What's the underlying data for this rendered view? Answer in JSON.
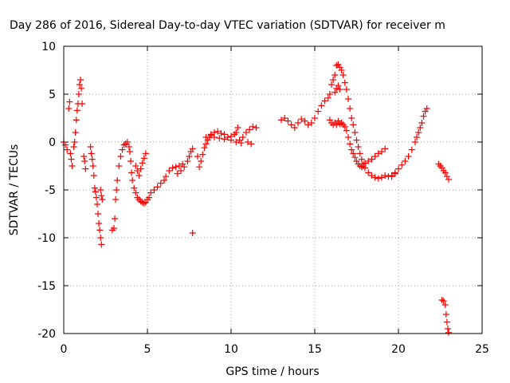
{
  "chart_data": {
    "type": "scatter",
    "title": "Day 286 of 2016, Sidereal Day-to-day VTEC variation (SDTVAR) for receiver m",
    "xlabel": "GPS time / hours",
    "ylabel": "SDTVAR / TECUs",
    "xlim": [
      0,
      25
    ],
    "ylim": [
      -20,
      10
    ],
    "xticks": [
      "0",
      "5",
      "10",
      "15",
      "20",
      "25"
    ],
    "yticks": [
      "10",
      "5",
      "0",
      "-5",
      "-10",
      "-15",
      "-20"
    ],
    "grid": true,
    "marker": "+",
    "color": "#ff0000",
    "series": [
      {
        "values": [
          [
            0.0,
            0.0
          ],
          [
            0.1,
            -0.3
          ],
          [
            0.2,
            -0.8
          ],
          [
            0.3,
            3.5
          ],
          [
            0.35,
            4.2
          ],
          [
            0.4,
            -1.2
          ],
          [
            0.45,
            -1.8
          ],
          [
            0.5,
            -2.5
          ],
          [
            0.6,
            -0.5
          ],
          [
            0.65,
            0.0
          ],
          [
            0.7,
            1.0
          ],
          [
            0.75,
            2.3
          ],
          [
            0.8,
            3.3
          ],
          [
            0.85,
            4.0
          ],
          [
            0.9,
            5.0
          ],
          [
            0.95,
            6.0
          ],
          [
            1.0,
            6.5
          ],
          [
            1.05,
            5.6
          ],
          [
            1.1,
            4.0
          ],
          [
            1.2,
            -1.5
          ],
          [
            1.25,
            -2.0
          ],
          [
            1.3,
            -2.8
          ],
          [
            1.6,
            -0.5
          ],
          [
            1.65,
            -1.2
          ],
          [
            1.7,
            -1.8
          ],
          [
            1.75,
            -2.5
          ],
          [
            1.8,
            -3.5
          ],
          [
            1.85,
            -4.8
          ],
          [
            1.9,
            -5.2
          ],
          [
            1.95,
            -5.8
          ],
          [
            2.0,
            -6.5
          ],
          [
            2.05,
            -7.5
          ],
          [
            2.1,
            -8.5
          ],
          [
            2.15,
            -9.2
          ],
          [
            2.2,
            -10.0
          ],
          [
            2.25,
            -10.7
          ],
          [
            2.2,
            -5.0
          ],
          [
            2.25,
            -5.6
          ],
          [
            2.3,
            -6.0
          ],
          [
            2.9,
            -9.2
          ],
          [
            3.0,
            -9.0
          ],
          [
            3.05,
            -8.0
          ],
          [
            3.1,
            -6.0
          ],
          [
            3.15,
            -5.0
          ],
          [
            3.2,
            -4.0
          ],
          [
            3.3,
            -2.5
          ],
          [
            3.4,
            -1.5
          ],
          [
            3.5,
            -0.8
          ],
          [
            3.6,
            -0.3
          ],
          [
            3.7,
            -0.2
          ],
          [
            3.8,
            0.0
          ],
          [
            3.9,
            -0.5
          ],
          [
            3.95,
            -1.0
          ],
          [
            4.0,
            -2.0
          ],
          [
            4.05,
            -3.2
          ],
          [
            4.1,
            -4.0
          ],
          [
            4.2,
            -4.8
          ],
          [
            4.3,
            -5.3
          ],
          [
            4.4,
            -5.8
          ],
          [
            4.5,
            -6.0
          ],
          [
            4.6,
            -6.2
          ],
          [
            4.7,
            -6.3
          ],
          [
            4.8,
            -6.4
          ],
          [
            4.9,
            -6.3
          ],
          [
            5.0,
            -6.0
          ],
          [
            5.1,
            -5.8
          ],
          [
            4.3,
            -2.5
          ],
          [
            4.4,
            -3.0
          ],
          [
            4.5,
            -3.5
          ],
          [
            4.6,
            -2.8
          ],
          [
            4.7,
            -2.2
          ],
          [
            4.8,
            -1.7
          ],
          [
            4.9,
            -1.2
          ],
          [
            5.2,
            -5.3
          ],
          [
            5.4,
            -5.0
          ],
          [
            5.6,
            -4.7
          ],
          [
            5.8,
            -4.3
          ],
          [
            6.0,
            -4.0
          ],
          [
            6.1,
            -3.6
          ],
          [
            6.3,
            -3.0
          ],
          [
            6.5,
            -2.7
          ],
          [
            6.7,
            -2.6
          ],
          [
            6.9,
            -2.5
          ],
          [
            7.1,
            -2.3
          ],
          [
            6.8,
            -3.3
          ],
          [
            7.0,
            -3.0
          ],
          [
            7.2,
            -2.6
          ],
          [
            7.4,
            -2.0
          ],
          [
            7.5,
            -1.5
          ],
          [
            7.6,
            -1.0
          ],
          [
            7.7,
            -0.7
          ],
          [
            7.7,
            -9.5
          ],
          [
            8.0,
            -1.5
          ],
          [
            8.1,
            -2.6
          ],
          [
            8.2,
            -2.0
          ],
          [
            8.3,
            -1.3
          ],
          [
            8.4,
            -0.6
          ],
          [
            8.5,
            -0.2
          ],
          [
            8.6,
            0.2
          ],
          [
            8.7,
            0.5
          ],
          [
            8.8,
            0.8
          ],
          [
            9.0,
            1.0
          ],
          [
            9.2,
            1.1
          ],
          [
            9.4,
            0.9
          ],
          [
            9.6,
            0.8
          ],
          [
            9.8,
            0.5
          ],
          [
            10.0,
            0.6
          ],
          [
            10.2,
            0.8
          ],
          [
            10.3,
            1.0
          ],
          [
            10.4,
            1.5
          ],
          [
            8.5,
            0.5
          ],
          [
            8.8,
            0.7
          ],
          [
            9.0,
            0.5
          ],
          [
            9.3,
            0.4
          ],
          [
            9.6,
            0.3
          ],
          [
            10.0,
            0.2
          ],
          [
            10.3,
            0.0
          ],
          [
            10.6,
            -0.1
          ],
          [
            11.0,
            0.0
          ],
          [
            11.2,
            -0.2
          ],
          [
            10.5,
            0.2
          ],
          [
            10.7,
            0.5
          ],
          [
            10.9,
            1.0
          ],
          [
            11.1,
            1.3
          ],
          [
            11.3,
            1.6
          ],
          [
            11.5,
            1.5
          ],
          [
            13.0,
            2.3
          ],
          [
            13.2,
            2.5
          ],
          [
            13.4,
            2.2
          ],
          [
            13.6,
            1.8
          ],
          [
            13.8,
            1.5
          ],
          [
            14.0,
            2.0
          ],
          [
            14.2,
            2.4
          ],
          [
            14.4,
            2.2
          ],
          [
            14.6,
            1.8
          ],
          [
            14.8,
            2.0
          ],
          [
            15.0,
            2.5
          ],
          [
            15.2,
            3.2
          ],
          [
            15.4,
            3.8
          ],
          [
            15.6,
            4.3
          ],
          [
            15.8,
            4.6
          ],
          [
            15.9,
            2.3
          ],
          [
            16.0,
            2.0
          ],
          [
            16.1,
            1.8
          ],
          [
            16.2,
            2.0
          ],
          [
            16.3,
            1.8
          ],
          [
            16.4,
            2.2
          ],
          [
            16.5,
            1.9
          ],
          [
            16.6,
            2.0
          ],
          [
            16.7,
            1.8
          ],
          [
            16.8,
            1.6
          ],
          [
            16.9,
            1.2
          ],
          [
            17.0,
            0.5
          ],
          [
            17.1,
            -0.2
          ],
          [
            17.2,
            -0.8
          ],
          [
            17.3,
            -1.2
          ],
          [
            17.4,
            -1.6
          ],
          [
            17.5,
            -2.0
          ],
          [
            17.6,
            -2.3
          ],
          [
            17.7,
            -2.5
          ],
          [
            17.8,
            -2.6
          ],
          [
            17.9,
            -2.5
          ],
          [
            18.0,
            -2.2
          ],
          [
            18.2,
            -2.0
          ],
          [
            18.4,
            -1.8
          ],
          [
            18.6,
            -1.5
          ],
          [
            18.8,
            -1.2
          ],
          [
            19.0,
            -1.0
          ],
          [
            19.2,
            -0.7
          ],
          [
            15.9,
            5.0
          ],
          [
            16.0,
            6.0
          ],
          [
            16.1,
            6.5
          ],
          [
            16.2,
            7.0
          ],
          [
            16.3,
            8.0
          ],
          [
            16.4,
            8.1
          ],
          [
            16.5,
            7.8
          ],
          [
            16.6,
            7.5
          ],
          [
            16.7,
            7.0
          ],
          [
            16.8,
            6.2
          ],
          [
            16.9,
            5.5
          ],
          [
            17.0,
            4.5
          ],
          [
            17.1,
            3.5
          ],
          [
            17.2,
            2.5
          ],
          [
            17.3,
            1.8
          ],
          [
            17.4,
            1.0
          ],
          [
            17.5,
            0.2
          ],
          [
            17.6,
            -0.5
          ],
          [
            17.7,
            -1.2
          ],
          [
            17.8,
            -1.8
          ],
          [
            17.9,
            -2.3
          ],
          [
            18.0,
            -2.7
          ],
          [
            18.2,
            -3.2
          ],
          [
            18.4,
            -3.5
          ],
          [
            18.6,
            -3.7
          ],
          [
            18.8,
            -3.8
          ],
          [
            19.0,
            -3.7
          ],
          [
            19.2,
            -3.5
          ],
          [
            19.4,
            -3.6
          ],
          [
            19.6,
            -3.5
          ],
          [
            19.8,
            -3.3
          ],
          [
            16.2,
            5.2
          ],
          [
            16.3,
            5.6
          ],
          [
            16.4,
            5.9
          ],
          [
            16.5,
            5.5
          ],
          [
            19.6,
            -3.6
          ],
          [
            19.8,
            -3.2
          ],
          [
            20.0,
            -2.8
          ],
          [
            20.2,
            -2.4
          ],
          [
            20.4,
            -2.0
          ],
          [
            20.6,
            -1.5
          ],
          [
            20.8,
            -0.8
          ],
          [
            21.0,
            0.0
          ],
          [
            21.1,
            0.5
          ],
          [
            21.2,
            1.0
          ],
          [
            21.3,
            1.5
          ],
          [
            21.4,
            2.0
          ],
          [
            21.5,
            2.7
          ],
          [
            21.6,
            3.2
          ],
          [
            21.7,
            3.5
          ],
          [
            22.4,
            -2.3
          ],
          [
            22.5,
            -2.5
          ],
          [
            22.6,
            -2.7
          ],
          [
            22.7,
            -3.0
          ],
          [
            22.8,
            -3.2
          ],
          [
            22.9,
            -3.6
          ],
          [
            23.0,
            -3.9
          ],
          [
            22.6,
            -16.5
          ],
          [
            22.7,
            -16.6
          ],
          [
            22.8,
            -17.0
          ],
          [
            22.85,
            -18.0
          ],
          [
            22.9,
            -18.8
          ],
          [
            22.95,
            -19.5
          ],
          [
            23.0,
            -19.9
          ]
        ]
      }
    ]
  }
}
